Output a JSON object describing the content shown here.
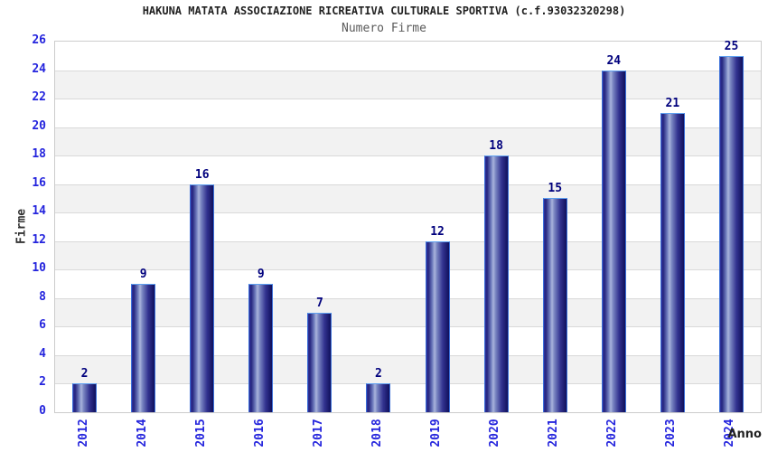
{
  "header": {
    "title": "HAKUNA MATATA ASSOCIAZIONE RICREATIVA CULTURALE SPORTIVA (c.f.93032320298)",
    "subtitle": "Numero Firme"
  },
  "chart_data": {
    "type": "bar",
    "title": "HAKUNA MATATA ASSOCIAZIONE RICREATIVA CULTURALE SPORTIVA (c.f.93032320298)",
    "subtitle": "Numero Firme",
    "xlabel": "Anno",
    "ylabel": "Firme",
    "categories": [
      "2012",
      "2014",
      "2015",
      "2016",
      "2017",
      "2018",
      "2019",
      "2020",
      "2021",
      "2022",
      "2023",
      "2024"
    ],
    "values": [
      2,
      9,
      16,
      9,
      7,
      2,
      12,
      18,
      15,
      24,
      21,
      25
    ],
    "ylim": [
      0,
      26
    ],
    "ytick_step": 2,
    "grid": "horizontal-bands-alternating",
    "legend": "none",
    "colors": {
      "bar_dark": "#10105c",
      "bar_mid": "#32329e",
      "bar_highlight": "#aab4dc",
      "bar_border": "#3a6fd8",
      "tick_label": "#2424dd",
      "value_label": "#00007d",
      "title": "#222222",
      "subtitle": "#5a5a5a",
      "axis_label": "#333333",
      "band_gray": "#f2f2f2",
      "band_white": "#ffffff",
      "grid_line": "#d9d9d9",
      "plot_border": "#cccccc"
    }
  }
}
